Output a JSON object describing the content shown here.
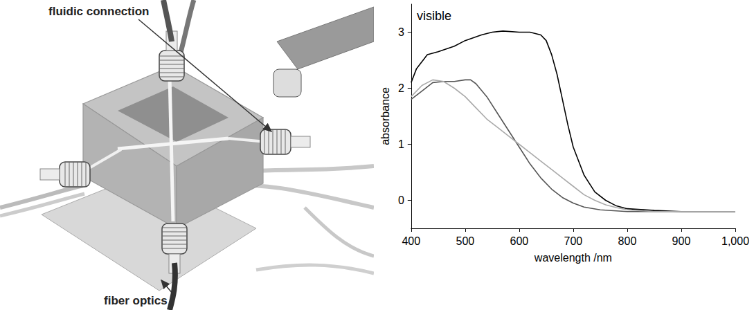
{
  "diagram": {
    "callouts": [
      {
        "label": "fluidic connection"
      },
      {
        "label": "fiber optics"
      }
    ]
  },
  "chart_data": {
    "type": "line",
    "annotations": [
      "visible"
    ],
    "x_label": "wavelength /nm",
    "y_label": "absorbance",
    "xlim": [
      400,
      1000
    ],
    "xticks": [
      400,
      500,
      600,
      700,
      800,
      900,
      1000
    ],
    "ylim": [
      -0.5,
      3.5
    ],
    "yticks": [
      0,
      1,
      2,
      3
    ],
    "grid": false,
    "series": [
      {
        "color": "#000000",
        "x": [
          400,
          410,
          430,
          450,
          480,
          500,
          530,
          550,
          570,
          600,
          620,
          640,
          650,
          660,
          670,
          680,
          690,
          700,
          720,
          740,
          760,
          780,
          800,
          850,
          900,
          1000
        ],
        "values": [
          2.1,
          2.35,
          2.6,
          2.65,
          2.75,
          2.85,
          2.95,
          3.0,
          3.02,
          3.0,
          3.0,
          2.95,
          2.85,
          2.6,
          2.25,
          1.8,
          1.35,
          0.95,
          0.45,
          0.15,
          0.0,
          -0.1,
          -0.15,
          -0.18,
          -0.2,
          -0.2
        ]
      },
      {
        "color": "#555555",
        "x": [
          400,
          420,
          440,
          460,
          480,
          500,
          510,
          520,
          540,
          560,
          580,
          600,
          620,
          640,
          660,
          680,
          700,
          720,
          750,
          800,
          900,
          1000
        ],
        "values": [
          1.8,
          1.95,
          2.1,
          2.12,
          2.12,
          2.15,
          2.15,
          2.08,
          1.85,
          1.55,
          1.25,
          0.95,
          0.65,
          0.4,
          0.2,
          0.05,
          -0.05,
          -0.12,
          -0.17,
          -0.2,
          -0.2,
          -0.2
        ]
      },
      {
        "color": "#aaaaaa",
        "x": [
          400,
          420,
          440,
          460,
          480,
          500,
          520,
          540,
          560,
          580,
          600,
          620,
          640,
          660,
          680,
          700,
          720,
          740,
          760,
          780,
          800,
          850,
          1000
        ],
        "values": [
          1.85,
          2.05,
          2.15,
          2.12,
          2.0,
          1.85,
          1.65,
          1.45,
          1.3,
          1.15,
          1.0,
          0.85,
          0.7,
          0.55,
          0.4,
          0.25,
          0.1,
          0.0,
          -0.08,
          -0.13,
          -0.17,
          -0.2,
          -0.2
        ]
      }
    ]
  }
}
